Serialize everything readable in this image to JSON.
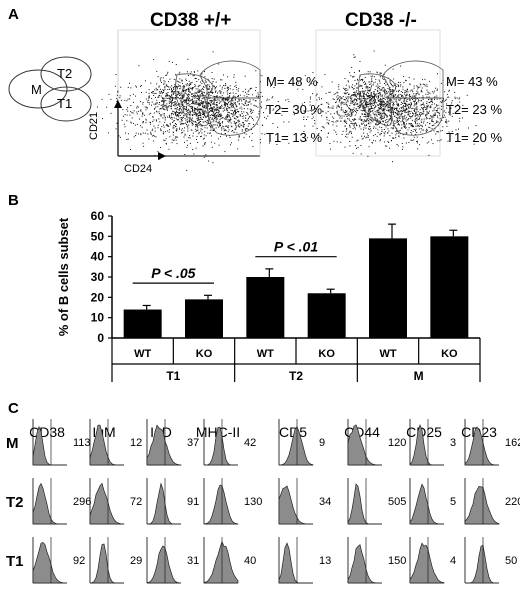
{
  "panels": {
    "a": "A",
    "b": "B",
    "c": "C"
  },
  "panel_a": {
    "diagram": {
      "m": "M",
      "t1": "T1",
      "t2": "T2"
    },
    "x_axis_label": "CD24",
    "y_axis_label": "CD21",
    "plots": [
      {
        "title": "CD38 +/+",
        "stats": [
          "M= 48 %",
          "T2= 30 %",
          "T1= 13 %"
        ]
      },
      {
        "title": "CD38 -/-",
        "stats": [
          "M= 43 %",
          "T2= 23 %",
          "T1= 20 %"
        ]
      }
    ]
  },
  "chart_data": [
    {
      "type": "bar",
      "ylabel": "% of B cells subset",
      "ylim": [
        0,
        60
      ],
      "yticks": [
        0,
        10,
        20,
        30,
        40,
        50,
        60
      ],
      "categories": [
        "WT",
        "KO",
        "WT",
        "KO",
        "WT",
        "KO"
      ],
      "groups": [
        "T1",
        "T2",
        "M"
      ],
      "values": [
        14,
        19,
        30,
        22,
        49,
        50
      ],
      "errors": [
        2,
        2,
        4,
        2,
        7,
        3
      ],
      "annotations": [
        "P < .05",
        "P < .01"
      ],
      "color": "#000000",
      "grid": false
    },
    {
      "type": "histogram-grid",
      "columns": [
        "CD38",
        "IgM",
        "IgD",
        "MHC-II",
        "CD5",
        "CD44",
        "CD25",
        "CD23"
      ],
      "rows": [
        {
          "label": "M",
          "values": [
            113,
            12,
            37,
            42,
            9,
            120,
            3,
            162
          ]
        },
        {
          "label": "T2",
          "values": [
            296,
            72,
            91,
            130,
            34,
            505,
            5,
            220
          ]
        },
        {
          "label": "T1",
          "values": [
            92,
            29,
            31,
            40,
            13,
            150,
            4,
            50
          ]
        }
      ],
      "fill_color": "#8c8c8c"
    }
  ]
}
